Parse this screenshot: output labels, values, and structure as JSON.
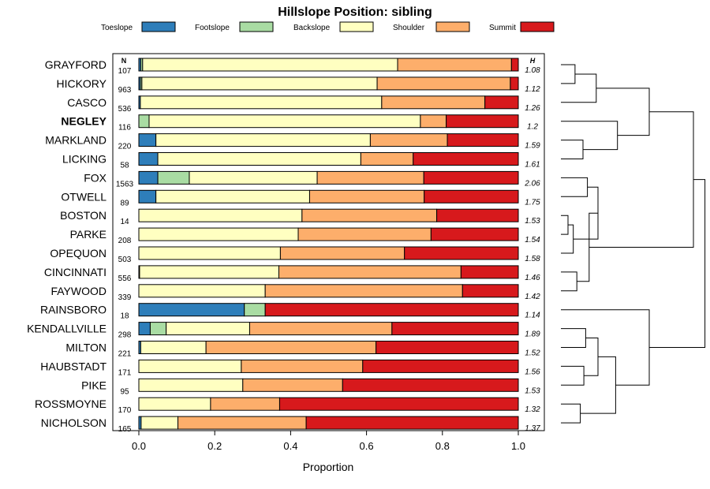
{
  "chart_data": {
    "type": "bar",
    "orientation": "horizontal-stacked",
    "title": "Hillslope Position: sibling",
    "xlabel": "Proportion",
    "ylabel": "",
    "xlim": [
      0,
      1
    ],
    "xticks": [
      "0.0",
      "0.2",
      "0.4",
      "0.6",
      "0.8",
      "1.0"
    ],
    "n_header": "N",
    "h_header": "H",
    "legend": [
      {
        "name": "Toeslope",
        "color": "#2E7EBA"
      },
      {
        "name": "Footslope",
        "color": "#A9DCA3"
      },
      {
        "name": "Backslope",
        "color": "#FFFFC1"
      },
      {
        "name": "Shoulder",
        "color": "#FDAE6B"
      },
      {
        "name": "Summit",
        "color": "#D7191C"
      }
    ],
    "highlight": "NEGLEY",
    "categories": [
      "GRAYFORD",
      "HICKORY",
      "CASCO",
      "NEGLEY",
      "MARKLAND",
      "LICKING",
      "FOX",
      "OTWELL",
      "BOSTON",
      "PARKE",
      "OPEQUON",
      "CINCINNATI",
      "FAYWOOD",
      "RAINSBORO",
      "KENDALLVILLE",
      "MILTON",
      "HAUBSTADT",
      "PIKE",
      "ROSSMOYNE",
      "NICHOLSON"
    ],
    "n": [
      "107",
      "963",
      "536",
      "116",
      "220",
      "58",
      "1563",
      "89",
      "14",
      "208",
      "503",
      "556",
      "339",
      "18",
      "298",
      "221",
      "171",
      "95",
      "170",
      "165"
    ],
    "h": [
      "1.08",
      "1.12",
      "1.26",
      "1.2",
      "1.59",
      "1.61",
      "2.06",
      "1.75",
      "1.53",
      "1.54",
      "1.58",
      "1.46",
      "1.42",
      "1.14",
      "1.89",
      "1.52",
      "1.56",
      "1.53",
      "1.32",
      "1.37"
    ],
    "series": [
      {
        "name": "Toeslope",
        "values": [
          0.005,
          0.004,
          0.004,
          0.0,
          0.045,
          0.05,
          0.05,
          0.045,
          0.0,
          0.0,
          0.0,
          0.002,
          0.0,
          0.278,
          0.03,
          0.005,
          0.0,
          0.0,
          0.0,
          0.006
        ]
      },
      {
        "name": "Footslope",
        "values": [
          0.005,
          0.004,
          0.0,
          0.027,
          0.0,
          0.0,
          0.083,
          0.0,
          0.0,
          0.0,
          0.0,
          0.0,
          0.0,
          0.055,
          0.042,
          0.0,
          0.0,
          0.0,
          0.0,
          0.0
        ]
      },
      {
        "name": "Backslope",
        "values": [
          0.672,
          0.62,
          0.636,
          0.715,
          0.565,
          0.535,
          0.337,
          0.405,
          0.43,
          0.42,
          0.373,
          0.367,
          0.333,
          0.0,
          0.22,
          0.172,
          0.27,
          0.274,
          0.189,
          0.097
        ]
      },
      {
        "name": "Shoulder",
        "values": [
          0.3,
          0.351,
          0.272,
          0.068,
          0.203,
          0.138,
          0.281,
          0.302,
          0.355,
          0.35,
          0.327,
          0.48,
          0.52,
          0.0,
          0.375,
          0.448,
          0.32,
          0.263,
          0.182,
          0.338
        ]
      },
      {
        "name": "Summit",
        "values": [
          0.018,
          0.021,
          0.088,
          0.19,
          0.187,
          0.277,
          0.249,
          0.248,
          0.215,
          0.23,
          0.3,
          0.151,
          0.147,
          0.667,
          0.333,
          0.375,
          0.41,
          0.463,
          0.629,
          0.559
        ]
      }
    ],
    "dendrogram": {
      "description": "hierarchical clustering of soils (right side)",
      "leaf_order": [
        "GRAYFORD",
        "HICKORY",
        "CASCO",
        "NEGLEY",
        "MARKLAND",
        "LICKING",
        "FOX",
        "OTWELL",
        "BOSTON",
        "PARKE",
        "OPEQUON",
        "CINCINNATI",
        "FAYWOOD",
        "RAINSBORO",
        "KENDALLVILLE",
        "MILTON",
        "HAUBSTADT",
        "PIKE",
        "ROSSMOYNE",
        "NICHOLSON"
      ]
    }
  }
}
